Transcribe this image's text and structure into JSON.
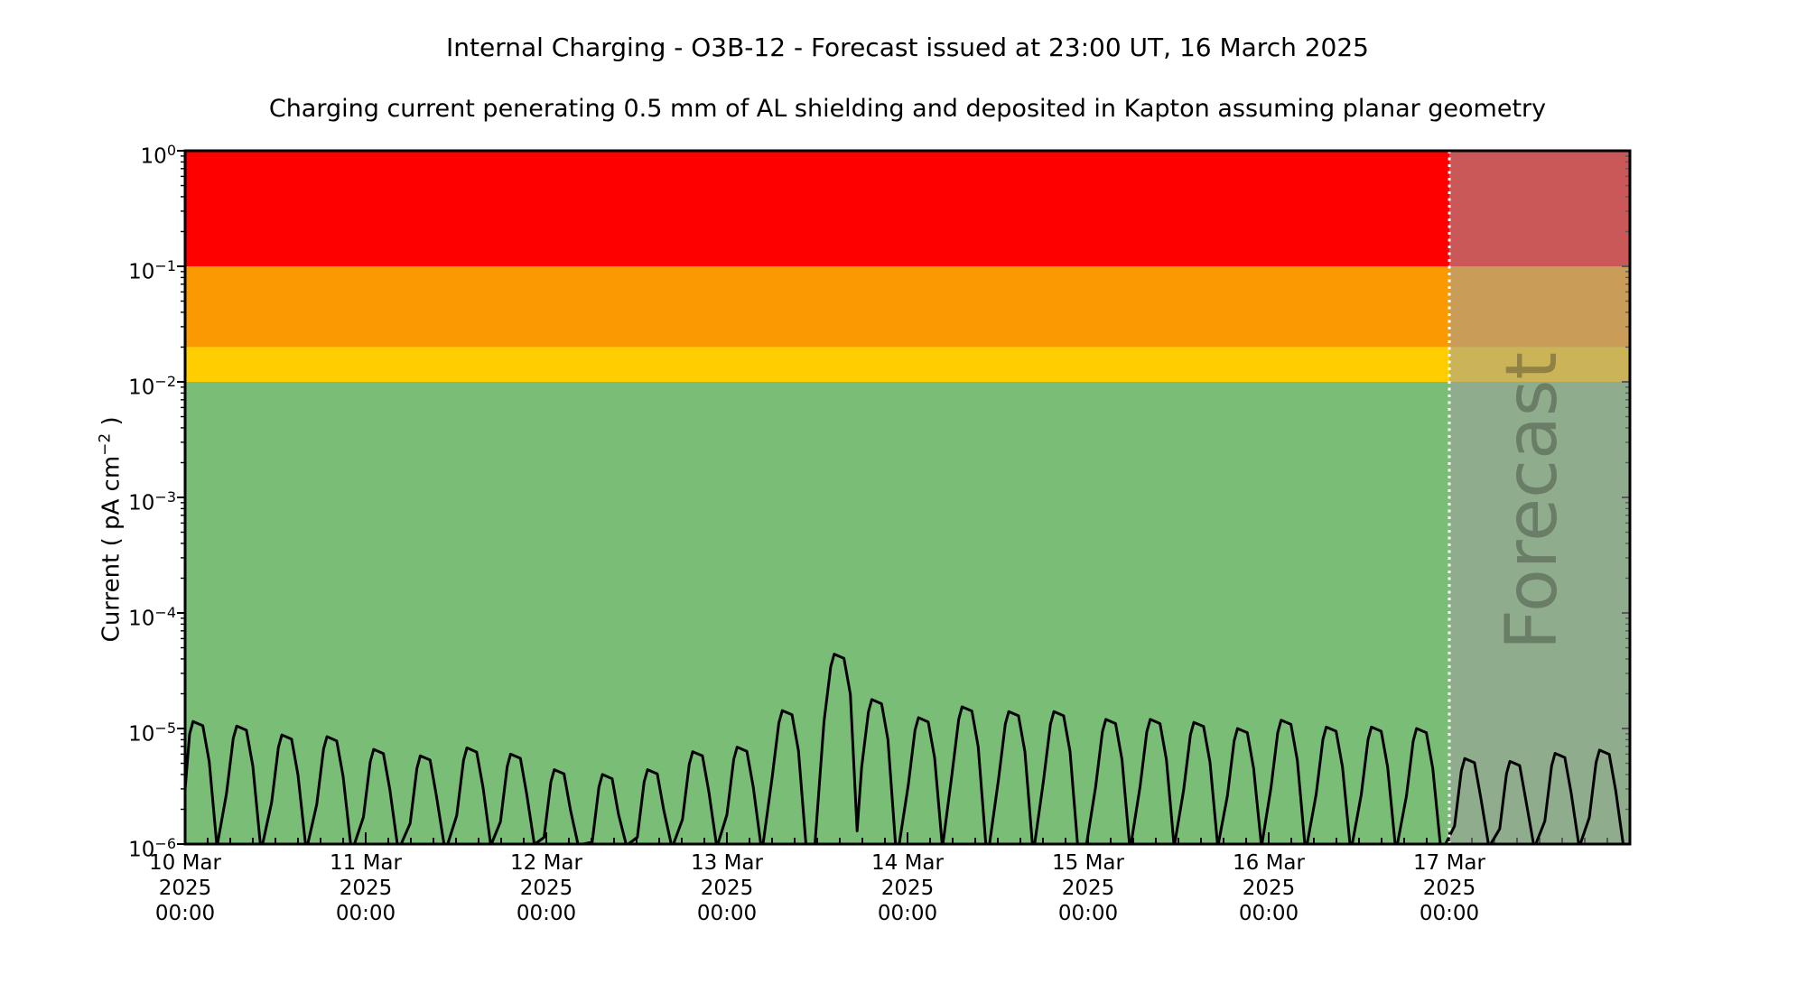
{
  "page": {
    "background": "#ffffff"
  },
  "chart_data": {
    "type": "line",
    "title": "Internal Charging - O3B-12 - Forecast issued at 23:00 UT, 16 March 2025",
    "subtitle": "Charging current penerating 0.5 mm of AL shielding and deposited in Kapton assuming planar geometry",
    "ylabel": "Current ( pA cm−2 )",
    "ylabel_parts": {
      "pre": "Current ( pA cm",
      "sup": "−2",
      "post": " )"
    },
    "grid": false,
    "legend": false,
    "y_axis": {
      "scale": "log",
      "min": 1e-06,
      "max": 1,
      "tick_exponents": [
        0,
        -1,
        -2,
        -3,
        -4,
        -5,
        -6
      ],
      "clip_floor": 1e-06
    },
    "x_axis": {
      "start": "10 Mar 2025 00:00 UT",
      "end": "18 Mar 2025 00:00 UT",
      "hours_total": 192,
      "major_tick_every_hours": 24,
      "minor_tick_every_hours": 3,
      "tick_labels": [
        {
          "date": "10 Mar",
          "year": "2025",
          "time": "00:00"
        },
        {
          "date": "11 Mar",
          "year": "2025",
          "time": "00:00"
        },
        {
          "date": "12 Mar",
          "year": "2025",
          "time": "00:00"
        },
        {
          "date": "13 Mar",
          "year": "2025",
          "time": "00:00"
        },
        {
          "date": "14 Mar",
          "year": "2025",
          "time": "00:00"
        },
        {
          "date": "15 Mar",
          "year": "2025",
          "time": "00:00"
        },
        {
          "date": "16 Mar",
          "year": "2025",
          "time": "00:00"
        },
        {
          "date": "17 Mar",
          "year": "2025",
          "time": "00:00"
        }
      ]
    },
    "bands": [
      {
        "name": "red-alert",
        "from": 0.1,
        "to": 1.0,
        "color": "#ff0000"
      },
      {
        "name": "orange-alert",
        "from": 0.02,
        "to": 0.1,
        "color": "#fb9902"
      },
      {
        "name": "yellow-alert",
        "from": 0.01,
        "to": 0.02,
        "color": "#ffcd00"
      },
      {
        "name": "green-safe",
        "from": 1e-06,
        "to": 0.01,
        "color": "#7abd76"
      }
    ],
    "forecast": {
      "label": "Forecast",
      "start_hour": 168,
      "overlay_color": "rgba(160,160,160,0.55)",
      "divider_color": "#ffffff",
      "label_color": "rgba(25,25,25,0.32)"
    },
    "series": [
      {
        "name": "charging-current",
        "color": "#000000",
        "peaks_hour_value": [
          [
            1.6,
            1.15e-05
          ],
          [
            7.4,
            1.05e-05
          ],
          [
            13.4,
            8.8e-06
          ],
          [
            19.4,
            8.5e-06
          ],
          [
            25.6,
            6.6e-06
          ],
          [
            31.8,
            5.8e-06
          ],
          [
            38.0,
            6.8e-06
          ],
          [
            43.8,
            6e-06
          ],
          [
            49.6,
            4.4e-06
          ],
          [
            56.0,
            4e-06
          ],
          [
            62.0,
            4.4e-06
          ],
          [
            68.0,
            6.3e-06
          ],
          [
            73.9,
            6.9e-06
          ],
          [
            79.9,
            1.43e-05
          ],
          [
            86.8,
            4.4e-05
          ],
          [
            91.8,
            1.78e-05
          ],
          [
            98.0,
            1.24e-05
          ],
          [
            103.8,
            1.54e-05
          ],
          [
            110.0,
            1.4e-05
          ],
          [
            116.0,
            1.4e-05
          ],
          [
            122.9,
            1.2e-05
          ],
          [
            128.8,
            1.2e-05
          ],
          [
            134.6,
            1.13e-05
          ],
          [
            140.4,
            1e-05
          ],
          [
            146.2,
            1.18e-05
          ],
          [
            152.2,
            1.03e-05
          ],
          [
            158.2,
            1.03e-05
          ],
          [
            164.2,
            1e-05
          ],
          [
            170.6,
            5.5e-06
          ],
          [
            176.6,
            5.2e-06
          ],
          [
            182.6,
            6.1e-06
          ],
          [
            188.5,
            6.5e-06
          ]
        ],
        "trough_after_peak": {
          "14": 1.3e-06
        }
      }
    ]
  }
}
